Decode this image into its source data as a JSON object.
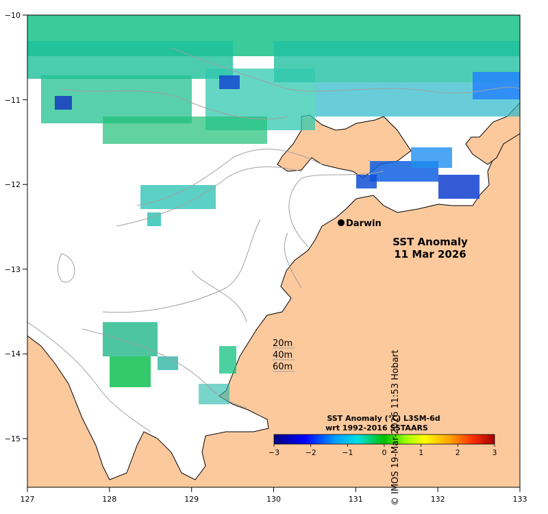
{
  "map": {
    "title_line1": "SST Anomaly",
    "title_line2": "11 Mar 2026",
    "place": "Darwin",
    "x_ticks": [
      "127",
      "128",
      "129",
      "130",
      "131",
      "132",
      "133"
    ],
    "y_ticks": [
      "−10",
      "−11",
      "−12",
      "−13",
      "−14",
      "−15"
    ],
    "depth_legend": [
      "20m",
      "40m",
      "60m"
    ],
    "colorbar_title_line1": "SST Anomaly (°C) L3SM-6d",
    "colorbar_title_line2": "wrt 1992-2016 SSTAARS",
    "colorbar_ticks": [
      "−3",
      "−2",
      "−1",
      "0",
      "1",
      "2",
      "3"
    ],
    "credit": "© IMOS 19-Mar-2026 11:53 Hobart",
    "colors": {
      "land": "#fcc99d",
      "ocean": "#ffffff",
      "contour": "#a0a0a0"
    }
  }
}
